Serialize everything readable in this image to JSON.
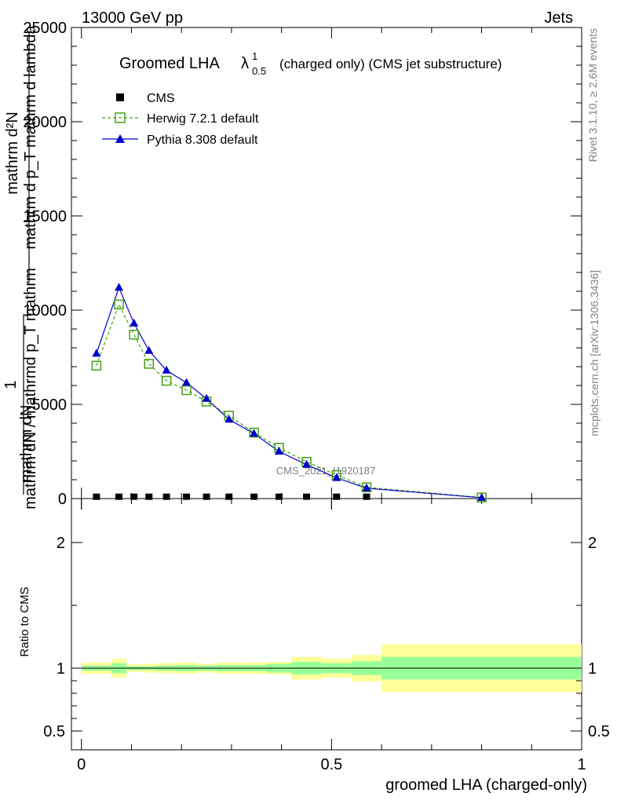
{
  "header": {
    "left": "13000 GeV pp",
    "right": "Jets"
  },
  "side_labels": {
    "rivet": "Rivet 3.1.10, ≥ 2.6M events",
    "mcplots": "mcplots.cern.ch [arXiv:1306.3436]"
  },
  "watermark": "CMS_2021_I1920187",
  "title": {
    "main": "Groomed LHA",
    "lambda": "λ",
    "sup": "1",
    "sub": "0.5",
    "rest": "(charged only) (CMS jet substructure)"
  },
  "main_ylabel": {
    "num_top": "mathrm d²N",
    "num_bottom": "mathrm d p_T mathrm d lambda",
    "one": "1",
    "den_top": "mathrm dN / mathrmd p_T mathrm",
    "den_bottom": "mathrm dN"
  },
  "ratio_ylabel": "Ratio to CMS",
  "xlabel": "groomed LHA (charged-only)",
  "legend": [
    {
      "name": "CMS",
      "marker": "square-filled",
      "color": "#000000"
    },
    {
      "name": "Herwig 7.2.1 default",
      "marker": "square-open",
      "color": "#44a015"
    },
    {
      "name": "Pythia 8.308 default",
      "marker": "triangle",
      "color": "#0000cc"
    }
  ],
  "chart_data": [
    {
      "type": "line",
      "panel": "main",
      "xlim": [
        -0.02,
        1.0
      ],
      "ylim": [
        0,
        25000
      ],
      "yticks": [
        "0",
        "5000",
        "10000",
        "15000",
        "20000",
        "25000"
      ],
      "series": [
        {
          "name": "CMS",
          "x": [
            0.03,
            0.075,
            0.105,
            0.135,
            0.17,
            0.21,
            0.25,
            0.295,
            0.345,
            0.395,
            0.45,
            0.51,
            0.57
          ],
          "y": [
            15,
            15,
            15,
            15,
            15,
            15,
            15,
            15,
            15,
            15,
            15,
            15,
            15
          ]
        },
        {
          "name": "Herwig 7.2.1 default",
          "x": [
            0.03,
            0.075,
            0.105,
            0.135,
            0.17,
            0.21,
            0.25,
            0.295,
            0.345,
            0.395,
            0.45,
            0.51,
            0.57,
            0.8
          ],
          "y": [
            7050,
            10300,
            8700,
            7150,
            6250,
            5750,
            5150,
            4400,
            3500,
            2700,
            1950,
            1250,
            600,
            60
          ]
        },
        {
          "name": "Pythia 8.308 default",
          "x": [
            0.03,
            0.075,
            0.105,
            0.135,
            0.17,
            0.21,
            0.25,
            0.295,
            0.345,
            0.395,
            0.45,
            0.51,
            0.57,
            0.8
          ],
          "y": [
            7700,
            11200,
            9300,
            7850,
            6800,
            6150,
            5300,
            4200,
            3450,
            2500,
            1800,
            1100,
            550,
            45
          ]
        }
      ]
    },
    {
      "type": "area",
      "panel": "ratio",
      "xlim": [
        -0.02,
        1.0
      ],
      "ylim": [
        0.35,
        2.35
      ],
      "yticks": [
        "0.5",
        "1",
        "2"
      ],
      "xticks": [
        "0",
        "0.5",
        "1"
      ],
      "reference": 1,
      "bins": [
        {
          "lo": 0.0,
          "hi": 0.06,
          "stat": [
            0.98,
            1.02
          ],
          "total": [
            0.955,
            1.045
          ]
        },
        {
          "lo": 0.06,
          "hi": 0.09,
          "stat": [
            0.96,
            1.04
          ],
          "total": [
            0.925,
            1.075
          ]
        },
        {
          "lo": 0.09,
          "hi": 0.12,
          "stat": [
            0.985,
            1.015
          ],
          "total": [
            0.97,
            1.03
          ]
        },
        {
          "lo": 0.12,
          "hi": 0.15,
          "stat": [
            0.985,
            1.015
          ],
          "total": [
            0.965,
            1.035
          ]
        },
        {
          "lo": 0.15,
          "hi": 0.19,
          "stat": [
            0.98,
            1.02
          ],
          "total": [
            0.96,
            1.04
          ]
        },
        {
          "lo": 0.19,
          "hi": 0.23,
          "stat": [
            0.975,
            1.025
          ],
          "total": [
            0.955,
            1.045
          ]
        },
        {
          "lo": 0.23,
          "hi": 0.27,
          "stat": [
            0.98,
            1.02
          ],
          "total": [
            0.965,
            1.035
          ]
        },
        {
          "lo": 0.27,
          "hi": 0.32,
          "stat": [
            0.975,
            1.025
          ],
          "total": [
            0.955,
            1.045
          ]
        },
        {
          "lo": 0.32,
          "hi": 0.37,
          "stat": [
            0.975,
            1.025
          ],
          "total": [
            0.955,
            1.045
          ]
        },
        {
          "lo": 0.37,
          "hi": 0.42,
          "stat": [
            0.965,
            1.035
          ],
          "total": [
            0.95,
            1.05
          ]
        },
        {
          "lo": 0.42,
          "hi": 0.48,
          "stat": [
            0.95,
            1.05
          ],
          "total": [
            0.91,
            1.09
          ]
        },
        {
          "lo": 0.48,
          "hi": 0.54,
          "stat": [
            0.96,
            1.04
          ],
          "total": [
            0.925,
            1.075
          ]
        },
        {
          "lo": 0.54,
          "hi": 0.6,
          "stat": [
            0.945,
            1.055
          ],
          "total": [
            0.895,
            1.105
          ]
        },
        {
          "lo": 0.6,
          "hi": 1.0,
          "stat": [
            0.91,
            1.09
          ],
          "total": [
            0.81,
            1.19
          ]
        }
      ]
    }
  ],
  "colors": {
    "stat_band": "#99ff99",
    "total_band": "#ffff99",
    "herwig": "#44a015",
    "pythia": "#0000cc"
  }
}
